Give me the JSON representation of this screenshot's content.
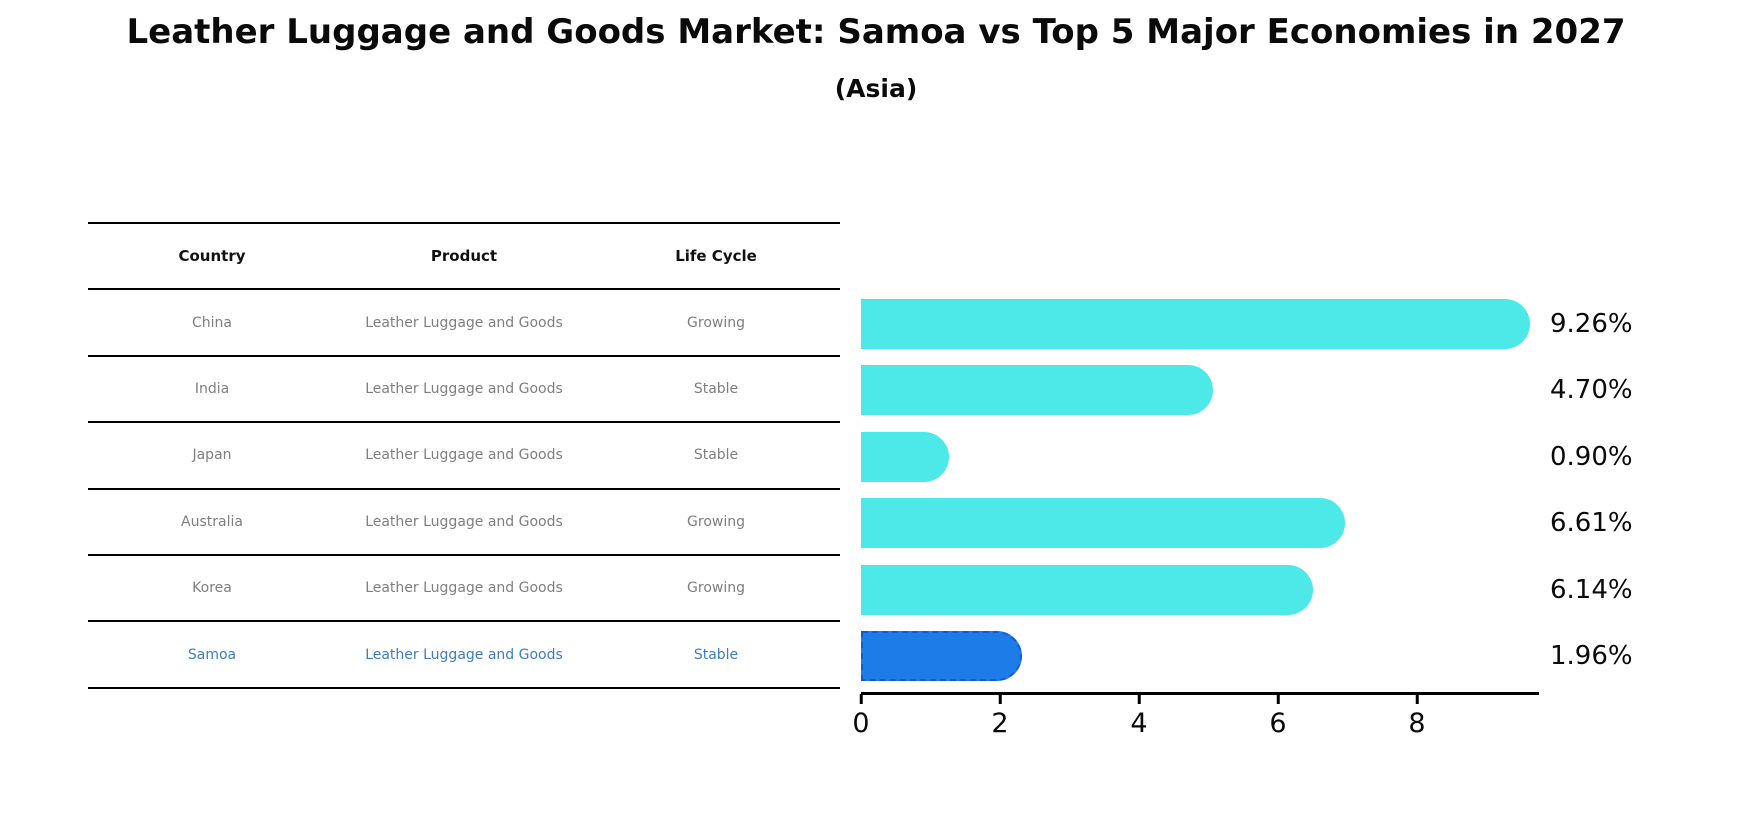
{
  "header": {
    "title": "Leather Luggage and Goods Market: Samoa vs Top 5 Major Economies in 2027",
    "subtitle": "(Asia)"
  },
  "table": {
    "columns": [
      "Country",
      "Product",
      "Life Cycle"
    ],
    "rows": [
      {
        "country": "China",
        "product": "Leather Luggage and Goods",
        "life_cycle": "Growing"
      },
      {
        "country": "India",
        "product": "Leather Luggage and Goods",
        "life_cycle": "Stable"
      },
      {
        "country": "Japan",
        "product": "Leather Luggage and Goods",
        "life_cycle": "Stable"
      },
      {
        "country": "Australia",
        "product": "Leather Luggage and Goods",
        "life_cycle": "Growing"
      },
      {
        "country": "Korea",
        "product": "Leather Luggage and Goods",
        "life_cycle": "Growing"
      },
      {
        "country": "Samoa",
        "product": "Leather Luggage and Goods",
        "life_cycle": "Stable"
      }
    ]
  },
  "chart_data": {
    "type": "bar",
    "orientation": "horizontal",
    "title": "Leather Luggage and Goods Market: Samoa vs Top 5 Major Economies in 2027",
    "subtitle": "(Asia)",
    "categories": [
      "China",
      "India",
      "Japan",
      "Australia",
      "Korea",
      "Samoa"
    ],
    "values": [
      9.26,
      4.7,
      0.9,
      6.61,
      6.14,
      1.96
    ],
    "value_labels": [
      "9.26%",
      "4.70%",
      "0.90%",
      "6.61%",
      "6.14%",
      "1.96%"
    ],
    "xticks": [
      0,
      2,
      4,
      6,
      8
    ],
    "xlim": [
      0,
      9.74
    ],
    "grid": false,
    "legend": "none",
    "bar_color": "#4de8e8",
    "highlight_index": 5,
    "highlight_color": "#1e7ce8",
    "highlight_border_color": "#1559d6",
    "highlight_text_color": "#3c7dc1"
  }
}
